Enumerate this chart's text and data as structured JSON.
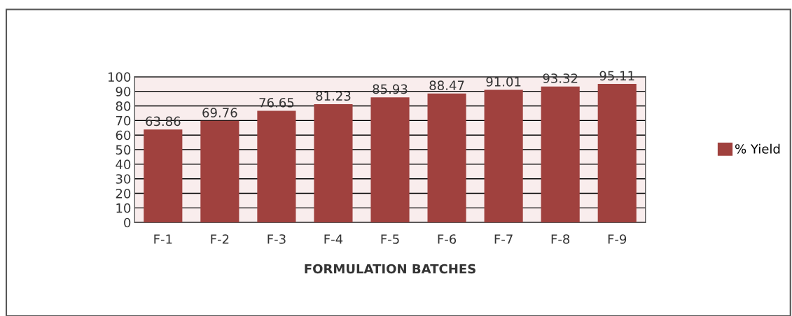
{
  "chart_data": {
    "type": "bar",
    "xlabel": "FORMULATION BATCHES",
    "categories": [
      "F-1",
      "F-2",
      "F-3",
      "F-4",
      "F-5",
      "F-6",
      "F-7",
      "F-8",
      "F-9"
    ],
    "series": [
      {
        "name": "% Yield",
        "color": "#a0413e",
        "values": [
          63.86,
          69.76,
          76.65,
          81.23,
          85.93,
          88.47,
          91.01,
          93.32,
          95.11
        ]
      }
    ],
    "ylim": [
      0,
      100
    ],
    "yticks": [
      0,
      10,
      20,
      30,
      40,
      50,
      60,
      70,
      80,
      90,
      100
    ],
    "grid": "y",
    "legend": "right",
    "data_labels": true
  }
}
